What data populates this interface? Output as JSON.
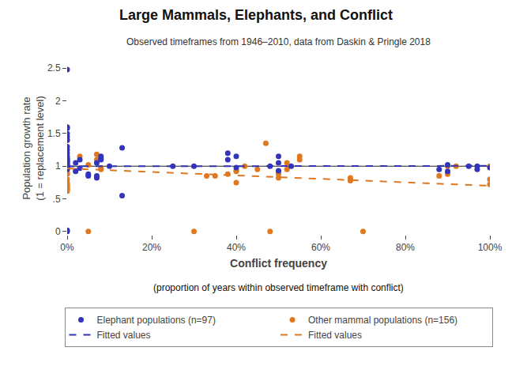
{
  "chart_data": {
    "type": "scatter",
    "title": "Large Mammals, Elephants, and Conflict",
    "subtitle": "Observed timeframes from 1946–2010, data from Daskin & Pringle 2018",
    "xlabel": "Conflict frequency",
    "ylabel": "Population growth rate\n(1 = replacement level)",
    "annotations": [
      "(proportion of years within observed timeframe with conflict)"
    ],
    "xlim": [
      0,
      1.0
    ],
    "ylim": [
      -0.05,
      2.6
    ],
    "xticks": [
      {
        "value": 0,
        "label": "0%"
      },
      {
        "value": 0.2,
        "label": "20%"
      },
      {
        "value": 0.4,
        "label": "40%"
      },
      {
        "value": 0.6,
        "label": "60%"
      },
      {
        "value": 0.8,
        "label": "80%"
      },
      {
        "value": 1.0,
        "label": "100%"
      }
    ],
    "yticks": [
      0,
      {
        "value": 0.5,
        "label": ".5"
      },
      1.0,
      1.5,
      2.0,
      2.5
    ],
    "grid": false,
    "legend": "bottom",
    "hlines": [
      {
        "value": 1.0,
        "color": "#222222"
      }
    ],
    "series": [
      {
        "name": "Elephant populations (n=97)",
        "type": "scatter",
        "marker": "circle",
        "color": "#3333bb",
        "x": [
          0.0,
          0.0,
          0.0,
          0.0,
          0.0,
          0.0,
          0.0,
          0.0,
          0.0,
          0.0,
          0.0,
          0.0,
          0.0,
          0.0,
          0.0,
          0.0,
          0.0,
          0.0,
          0.0,
          0.0,
          0.0,
          0.0,
          0.0,
          0.0,
          0.0,
          0.02,
          0.02,
          0.03,
          0.03,
          0.05,
          0.05,
          0.07,
          0.07,
          0.07,
          0.08,
          0.08,
          0.08,
          0.1,
          0.13,
          0.13,
          0.25,
          0.3,
          0.38,
          0.38,
          0.4,
          0.4,
          0.48,
          0.5,
          0.5,
          0.5,
          0.53,
          0.88,
          0.9,
          0.9,
          0.95,
          0.97,
          0.97,
          1.0
        ],
        "values": [
          0.0,
          0.02,
          0.95,
          0.97,
          0.98,
          0.99,
          1.0,
          1.0,
          1.02,
          1.03,
          1.05,
          1.07,
          1.08,
          1.1,
          1.12,
          1.15,
          1.2,
          1.25,
          1.3,
          1.4,
          1.45,
          1.5,
          1.58,
          1.6,
          2.48,
          0.92,
          1.05,
          0.97,
          1.1,
          0.85,
          0.88,
          0.82,
          0.85,
          1.05,
          1.1,
          1.12,
          1.15,
          1.0,
          0.55,
          1.28,
          1.0,
          1.0,
          1.1,
          1.2,
          1.15,
          0.98,
          1.0,
          0.93,
          1.05,
          1.15,
          1.0,
          0.95,
          0.92,
          1.02,
          1.0,
          0.95,
          1.0,
          0.98
        ]
      },
      {
        "name": "Other mammal populations (n=156)",
        "type": "scatter",
        "marker": "circle",
        "color": "#e07820",
        "x": [
          0.0,
          0.0,
          0.0,
          0.0,
          0.0,
          0.0,
          0.0,
          0.0,
          0.0,
          0.0,
          0.0,
          0.0,
          0.0,
          0.0,
          0.02,
          0.03,
          0.05,
          0.05,
          0.07,
          0.07,
          0.08,
          0.08,
          0.3,
          0.33,
          0.35,
          0.38,
          0.4,
          0.4,
          0.4,
          0.42,
          0.45,
          0.47,
          0.48,
          0.5,
          0.5,
          0.5,
          0.52,
          0.52,
          0.55,
          0.55,
          0.67,
          0.67,
          0.7,
          0.88,
          0.9,
          0.9,
          0.92,
          1.0,
          1.0,
          1.0
        ],
        "values": [
          0.62,
          0.65,
          0.65,
          0.68,
          0.7,
          0.72,
          0.75,
          0.8,
          0.88,
          0.9,
          0.95,
          0.98,
          1.0,
          1.4,
          0.93,
          1.15,
          0.0,
          1.02,
          1.1,
          1.18,
          0.95,
          0.97,
          0.0,
          0.85,
          0.85,
          0.88,
          0.75,
          0.92,
          0.93,
          1.0,
          0.95,
          1.35,
          0.0,
          0.82,
          0.88,
          0.92,
          0.95,
          1.05,
          1.1,
          1.15,
          0.78,
          0.82,
          0.0,
          0.85,
          0.88,
          1.0,
          1.0,
          0.72,
          0.8,
          1.0
        ]
      },
      {
        "name": "Fitted values",
        "type": "line",
        "line_style": "dashed",
        "color": "#3333bb",
        "x": [
          0.0,
          1.0
        ],
        "values": [
          0.998,
          1.005
        ]
      },
      {
        "name": "Fitted values",
        "type": "line",
        "line_style": "dashed",
        "color": "#e07820",
        "x": [
          0.0,
          1.0
        ],
        "values": [
          0.965,
          0.7
        ]
      }
    ]
  }
}
